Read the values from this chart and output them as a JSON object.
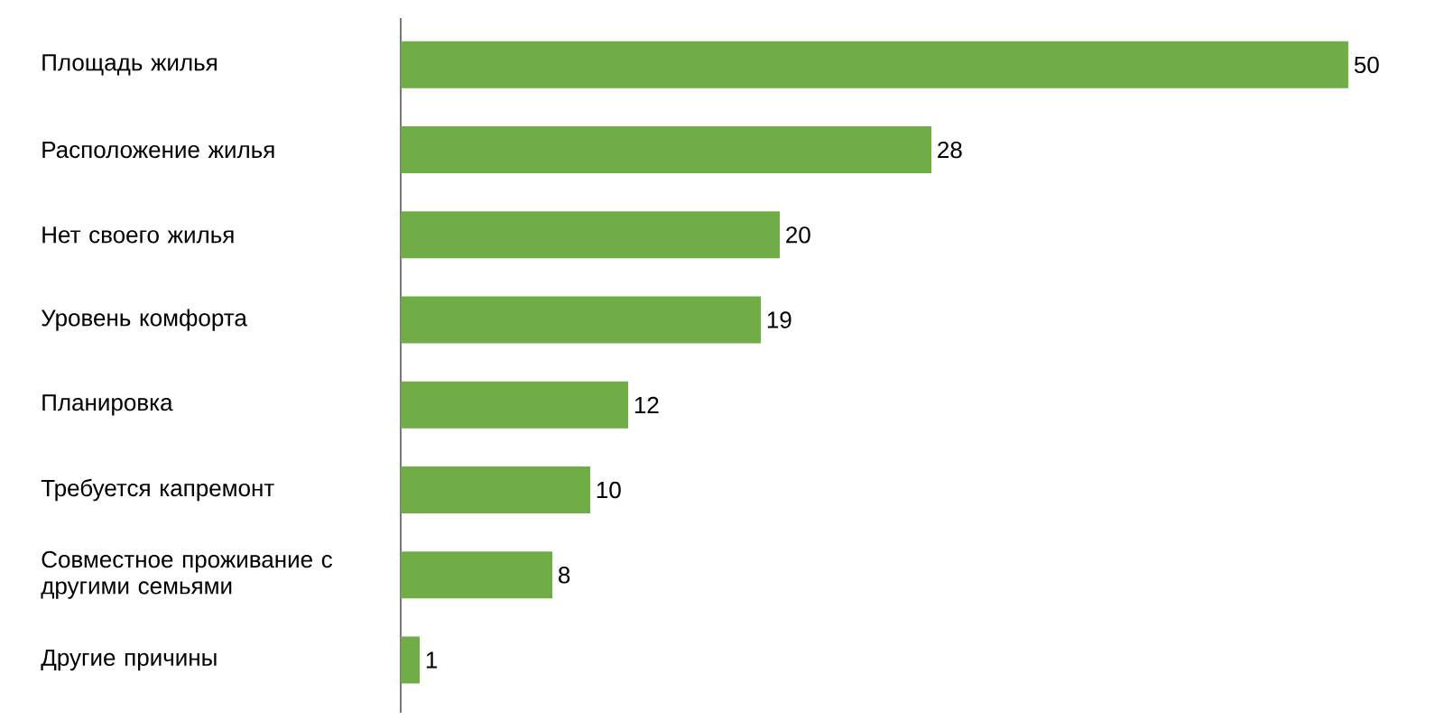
{
  "chart_data": {
    "type": "bar",
    "orientation": "horizontal",
    "categories": [
      "Площадь жилья",
      "Расположение жилья",
      "Нет своего жилья",
      "Уровень комфорта",
      "Планировка",
      "Требуется капремонт",
      "Совместное проживание с другими семьями",
      "Другие причины"
    ],
    "values": [
      50,
      28,
      20,
      19,
      12,
      10,
      8,
      1
    ],
    "color": "#70ad47",
    "data_labels": true
  }
}
